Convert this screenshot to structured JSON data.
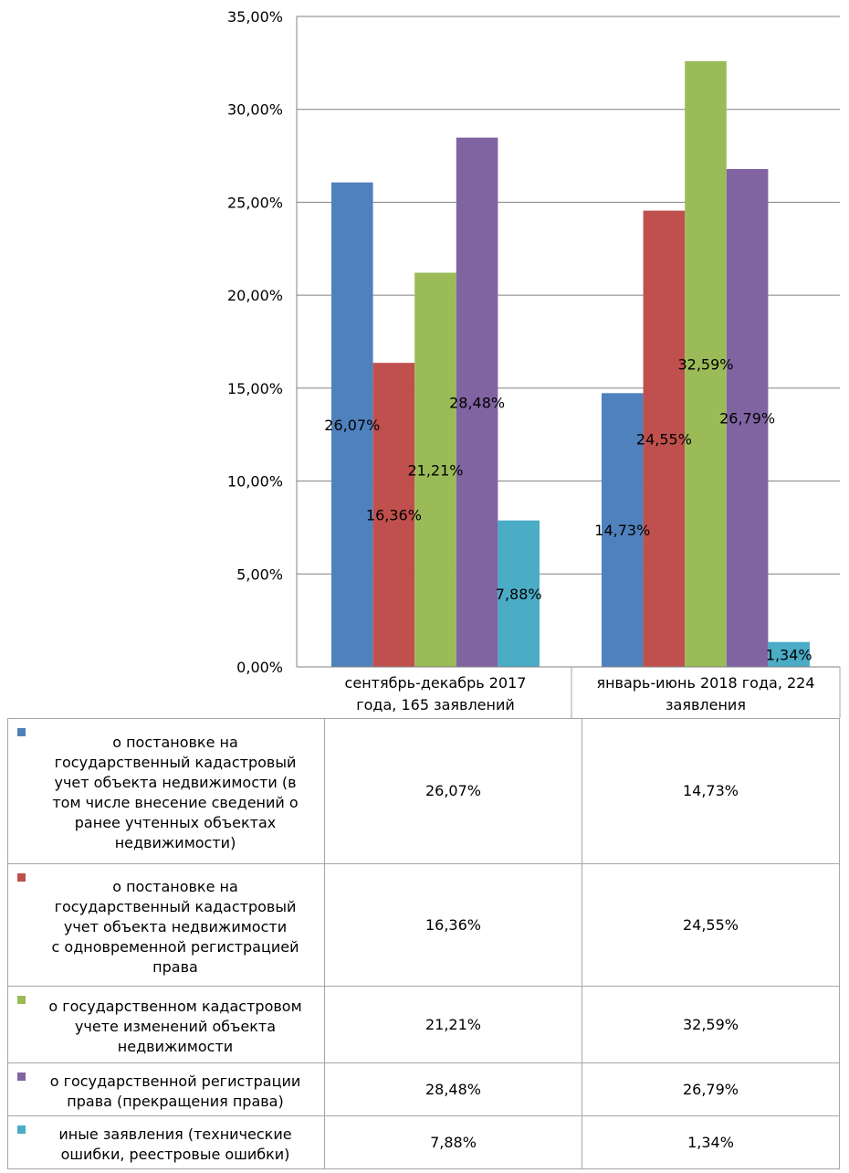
{
  "chart_data": {
    "type": "bar",
    "title": "",
    "xlabel": "",
    "ylabel": "",
    "ylim": [
      0,
      35
    ],
    "yticks": [
      "0,00%",
      "5,00%",
      "10,00%",
      "15,00%",
      "20,00%",
      "25,00%",
      "30,00%",
      "35,00%"
    ],
    "grid": true,
    "legend": "data table below chart",
    "categories": [
      "сентябрь-декабрь 2017 года, 165 заявлений",
      "январь-июнь 2018 года, 224 заявления"
    ],
    "category_lines": [
      [
        "сентябрь-декабрь 2017",
        "года, 165 заявлений"
      ],
      [
        "январь-июнь 2018 года, 224",
        "заявления"
      ]
    ],
    "series": [
      {
        "name": "о постановке на государственный кадастровый учет объекта недвижимости (в том числе внесение сведений о ранее учтенных объектах недвижимости)",
        "name_lines": [
          "о постановке на",
          "государственный кадастровый",
          "учет объекта недвижимости (в",
          "том числе внесение сведений о",
          "ранее учтенных объектах",
          "недвижимости)"
        ],
        "color": "#4F81BD",
        "values": [
          26.07,
          14.73
        ],
        "labels": [
          "26,07%",
          "14,73%"
        ]
      },
      {
        "name": "о постановке на государственный кадастровый учет объекта недвижимости с одновременной регистрацией права",
        "name_lines": [
          "о постановке на",
          "государственный кадастровый",
          "учет объекта недвижимости",
          "с одновременной регистрацией",
          "права"
        ],
        "color": "#C0504D",
        "values": [
          16.36,
          24.55
        ],
        "labels": [
          "16,36%",
          "24,55%"
        ]
      },
      {
        "name": "о государственном кадастровом учете изменений объекта недвижимости",
        "name_lines": [
          "о государственном кадастровом",
          "учете изменений объекта",
          "недвижимости"
        ],
        "color": "#9BBB59",
        "values": [
          21.21,
          32.59
        ],
        "labels": [
          "21,21%",
          "32,59%"
        ]
      },
      {
        "name": "о государственной регистрации права (прекращения права)",
        "name_lines": [
          "о государственной регистрации",
          "права (прекращения права)"
        ],
        "color": "#8064A2",
        "values": [
          28.48,
          26.79
        ],
        "labels": [
          "28,48%",
          "26,79%"
        ]
      },
      {
        "name": "иные заявления (технические ошибки, реестровые ошибки)",
        "name_lines": [
          "иные заявления (технические",
          "ошибки, реестровые ошибки)"
        ],
        "color": "#4BACC6",
        "values": [
          7.88,
          1.34
        ],
        "labels": [
          "7,88%",
          "1,34%"
        ]
      }
    ]
  }
}
